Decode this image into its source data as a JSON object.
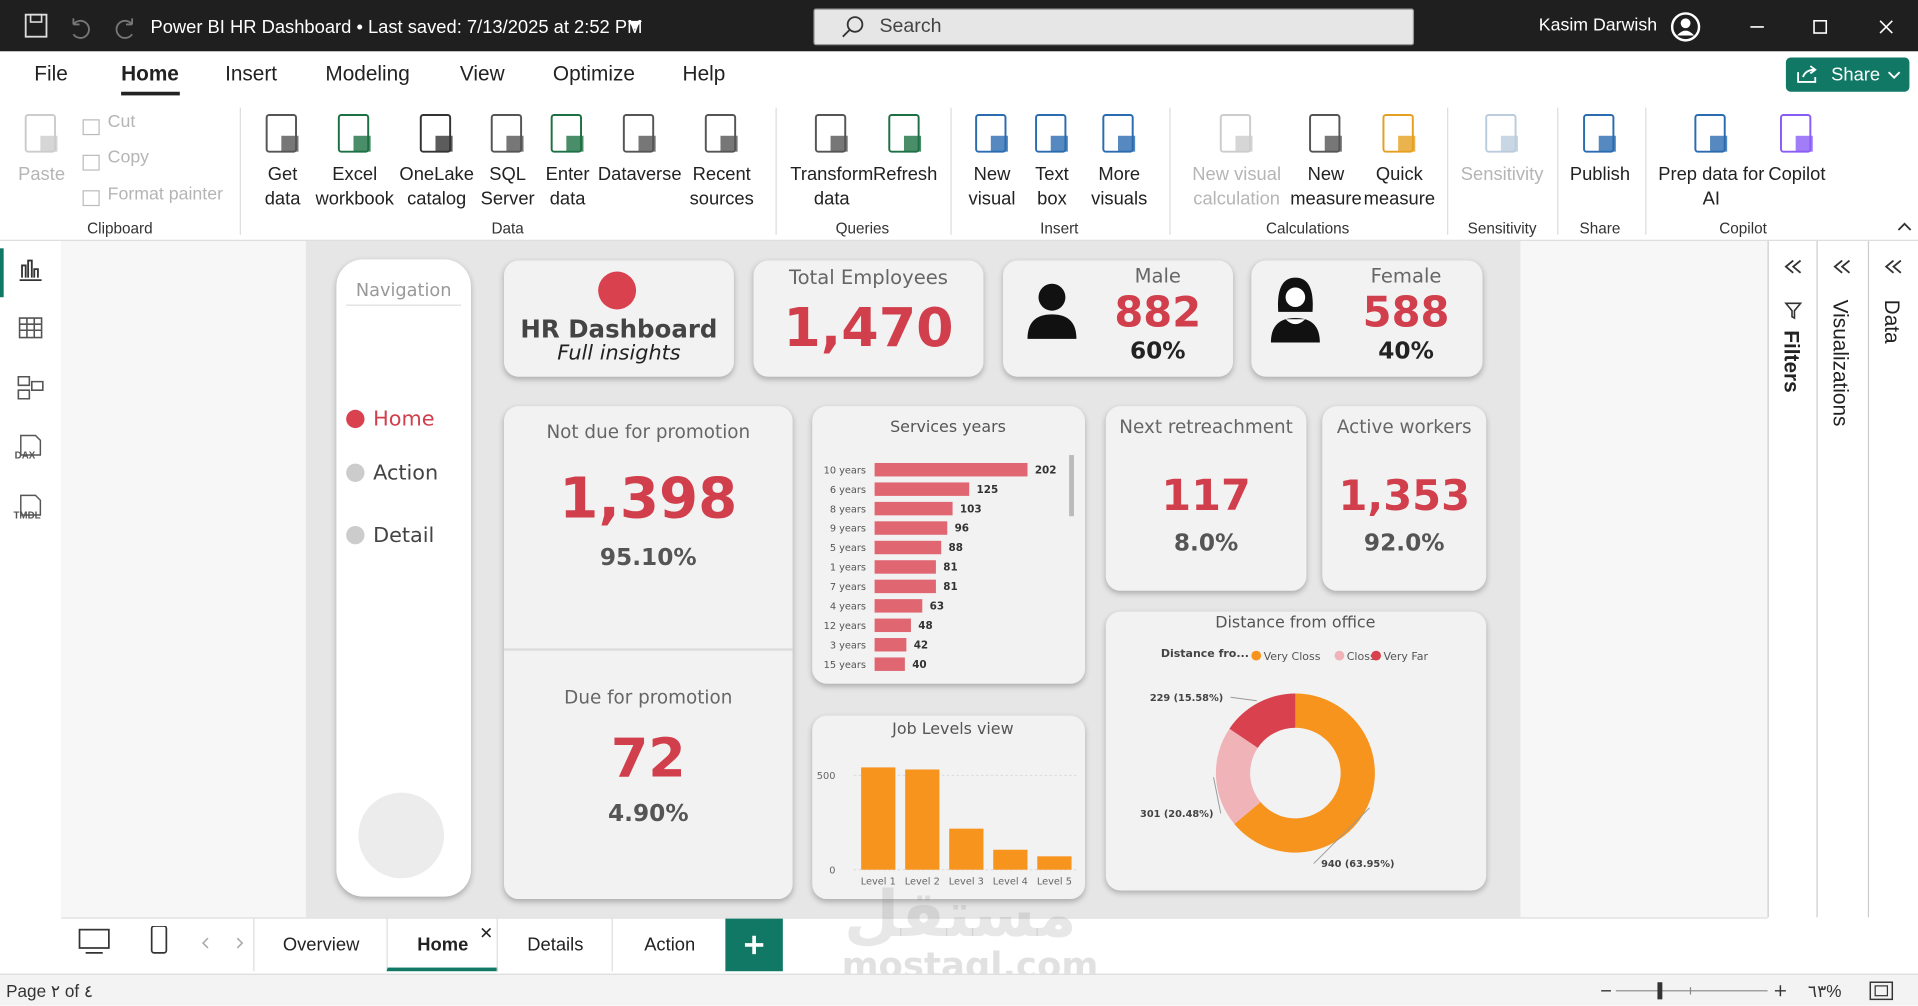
{
  "title_bar": {
    "title": "Power BI HR Dashboard • Last saved: 7/13/2025 at 2:52 PM",
    "search": "Search",
    "user": "Kasim Darwish"
  },
  "menu": {
    "tabs": [
      "File",
      "Home",
      "Insert",
      "Modeling",
      "View",
      "Optimize",
      "Help"
    ],
    "share": "Share"
  },
  "ribbon": {
    "groups": [
      {
        "label": "Clipboard",
        "items": [
          "Paste",
          "Cut",
          "Copy",
          "Format painter"
        ]
      },
      {
        "label": "Data",
        "items": [
          "Get\ndata",
          "Excel\nworkbook",
          "OneLake\ncatalog",
          "SQL\nServer",
          "Enter\ndata",
          "Dataverse",
          "Recent\nsources"
        ]
      },
      {
        "label": "Queries",
        "items": [
          "Transform\ndata",
          "Refresh"
        ]
      },
      {
        "label": "Insert",
        "items": [
          "New\nvisual",
          "Text\nbox",
          "More\nvisuals"
        ]
      },
      {
        "label": "Calculations",
        "items": [
          "New visual\ncalculation",
          "New\nmeasure",
          "Quick\nmeasure"
        ]
      },
      {
        "label": "Sensitivity",
        "items": [
          "Sensitivity"
        ]
      },
      {
        "label": "Share",
        "items": [
          "Publish"
        ]
      },
      {
        "label": "Copilot",
        "items": [
          "Prep data for\nAI",
          "Copilot"
        ]
      }
    ]
  },
  "left_rail": [
    "DAX",
    "TMDL"
  ],
  "right_panes": [
    "Filters",
    "Visualizations",
    "Data"
  ],
  "dashboard": {
    "navigation": {
      "title": "Navigation",
      "items": [
        "Home",
        "Action",
        "Detail"
      ]
    },
    "header": {
      "title": "HR Dashboard",
      "subtitle": "Full insights"
    },
    "total_employees": {
      "label": "Total Employees",
      "value": "1,470"
    },
    "male": {
      "label": "Male",
      "value": "882",
      "share": "60%"
    },
    "female": {
      "label": "Female",
      "value": "588",
      "share": "40%"
    },
    "not_due_promotion": {
      "label": "Not due for promotion",
      "value": "1,398",
      "share": "95.10%"
    },
    "due_promotion": {
      "label": "Due for promotion",
      "value": "72",
      "share": "4.90%"
    },
    "next_retreachment": {
      "label": "Next retreachment",
      "value": "117",
      "share": "8.0%"
    },
    "active_workers": {
      "label": "Active workers",
      "value": "1,353",
      "share": "92.0%"
    },
    "services_chart": {
      "type": "bar",
      "title": "Services years",
      "categories": [
        "10 years",
        "6 years",
        "8 years",
        "9 years",
        "5 years",
        "1 years",
        "7 years",
        "4 years",
        "12 years",
        "3 years",
        "15 years"
      ],
      "values": [
        202,
        125,
        103,
        96,
        88,
        81,
        81,
        63,
        48,
        42,
        40
      ],
      "color": "#e06672"
    },
    "job_levels_chart": {
      "type": "bar",
      "title": "Job Levels view",
      "categories": [
        "Level 1",
        "Level 2",
        "Level 3",
        "Level 4",
        "Level 5"
      ],
      "values": [
        543,
        532,
        218,
        106,
        71
      ],
      "color": "#f7941d",
      "ylim": [
        0,
        600
      ],
      "yticks": [
        0,
        500
      ]
    },
    "distance_chart": {
      "type": "donut",
      "title": "Distance from office",
      "legend_title": "Distance fro...",
      "categories": [
        "Very Closs",
        "Closs",
        "Very Far"
      ],
      "values": [
        940,
        301,
        229
      ],
      "value_labels": [
        "940 (63.95%)",
        "301 (20.48%)",
        "229 (15.58%)"
      ],
      "colors": [
        "#f7941d",
        "#f0b4b8",
        "#d9414f"
      ]
    }
  },
  "page_tabs": [
    "Overview",
    "Home",
    "Details",
    "Action"
  ],
  "watermark": {
    "arabic": "مستقل",
    "latin": "mostaql.com"
  },
  "status": {
    "page": "Page ٢ of ٤",
    "zoom": "٦٣%"
  }
}
